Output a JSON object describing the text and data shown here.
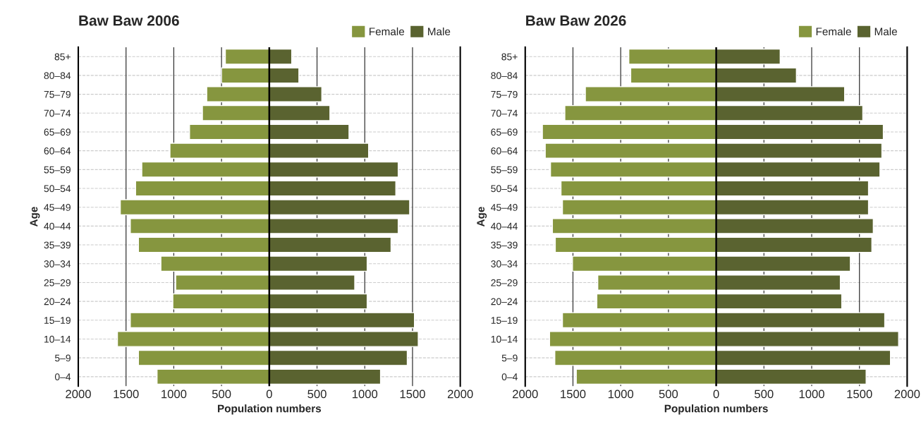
{
  "chart_data": [
    {
      "type": "bar",
      "title": "Baw Baw 2006",
      "orientation": "horizontal",
      "stacked": true,
      "xlabel": "Population numbers",
      "ylabel": "Age",
      "categories": [
        "85+",
        "80–84",
        "75–79",
        "70–74",
        "65–69",
        "60–64",
        "55–59",
        "50–54",
        "45–49",
        "40–44",
        "35–39",
        "30–34",
        "25–29",
        "20–24",
        "15–19",
        "10–14",
        "5–9",
        "0–4"
      ],
      "series": [
        {
          "name": "Female",
          "color": "#86963f",
          "values": [
            -460,
            -500,
            -655,
            -700,
            -835,
            -1040,
            -1335,
            -1400,
            -1560,
            -1455,
            -1370,
            -1135,
            -980,
            -1010,
            -1455,
            -1590,
            -1370,
            -1175
          ]
        },
        {
          "name": "Male",
          "color": "#5a6330",
          "values": [
            235,
            310,
            550,
            635,
            835,
            1040,
            1350,
            1325,
            1470,
            1350,
            1275,
            1025,
            895,
            1025,
            1520,
            1560,
            1445,
            1165
          ]
        }
      ],
      "xlim": [
        -2000,
        2000
      ],
      "xticks": [
        {
          "value": -2000,
          "label": "2000"
        },
        {
          "value": -1500,
          "label": "1500"
        },
        {
          "value": -1000,
          "label": "1000"
        },
        {
          "value": -500,
          "label": "500"
        },
        0,
        500,
        1000,
        1500,
        2000
      ],
      "ref_lines": [
        {
          "axis": "x",
          "value": 0,
          "color": "#000000"
        }
      ],
      "grid": true,
      "legend": "top right"
    },
    {
      "type": "bar",
      "title": "Baw Baw 2026",
      "orientation": "horizontal",
      "stacked": true,
      "xlabel": "Population numbers",
      "ylabel": "Age",
      "categories": [
        "85+",
        "80–84",
        "75–79",
        "70–74",
        "65–69",
        "60–64",
        "55–59",
        "50–54",
        "45–49",
        "40–44",
        "35–39",
        "30–34",
        "25–29",
        "20–24",
        "15–19",
        "10–14",
        "5–9",
        "0–4"
      ],
      "series": [
        {
          "name": "Female",
          "color": "#86963f",
          "values": [
            -915,
            -895,
            -1370,
            -1585,
            -1820,
            -1790,
            -1735,
            -1625,
            -1610,
            -1715,
            -1685,
            -1505,
            -1240,
            -1250,
            -1610,
            -1745,
            -1690,
            -1465
          ]
        },
        {
          "name": "Male",
          "color": "#5a6330",
          "values": [
            670,
            840,
            1345,
            1535,
            1750,
            1735,
            1715,
            1595,
            1595,
            1645,
            1630,
            1405,
            1300,
            1315,
            1765,
            1910,
            1825,
            1570
          ]
        }
      ],
      "xlim": [
        -2000,
        2000
      ],
      "xticks": [
        {
          "value": -2000,
          "label": "2000"
        },
        {
          "value": -1500,
          "label": "1500"
        },
        {
          "value": -1000,
          "label": "1000"
        },
        {
          "value": -500,
          "label": "500"
        },
        0,
        500,
        1000,
        1500,
        2000
      ],
      "ref_lines": [
        {
          "axis": "x",
          "value": 0,
          "color": "#000000"
        }
      ],
      "grid": true,
      "legend": "top right"
    }
  ]
}
